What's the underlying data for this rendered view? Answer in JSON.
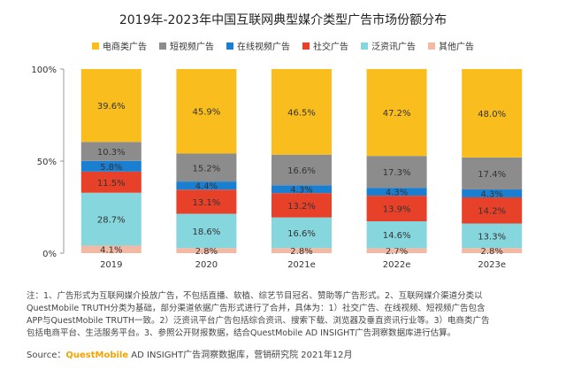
{
  "chart_data": {
    "type": "bar",
    "stacked": true,
    "title": "2019年-2023年中国互联网典型媒介类型广告市场份额分布",
    "categories": [
      "2019",
      "2020",
      "2021e",
      "2022e",
      "2023e"
    ],
    "ylim": [
      0,
      100
    ],
    "yticks": [
      "0%",
      "50%",
      "100%"
    ],
    "legend_position": "top",
    "series": [
      {
        "name": "其他广告",
        "color": "#f2b9a4",
        "values": [
          4.1,
          2.8,
          2.8,
          2.7,
          2.8
        ],
        "labels": [
          "4.1%",
          "2.8%",
          "2.8%",
          "2.7%",
          "2.8%"
        ]
      },
      {
        "name": "泛资讯广告",
        "color": "#86d6de",
        "values": [
          28.7,
          18.6,
          16.6,
          14.6,
          13.3
        ],
        "labels": [
          "28.7%",
          "18.6%",
          "16.6%",
          "14.6%",
          "13.3%"
        ]
      },
      {
        "name": "社交广告",
        "color": "#e8412a",
        "values": [
          11.5,
          13.1,
          13.2,
          13.9,
          14.2
        ],
        "labels": [
          "11.5%",
          "13.1%",
          "13.2%",
          "13.9%",
          "14.2%"
        ]
      },
      {
        "name": "在线视频广告",
        "color": "#1b7fd1",
        "values": [
          5.8,
          4.4,
          4.3,
          4.3,
          4.3
        ],
        "labels": [
          "5.8%",
          "4.4%",
          "4.3%",
          "4.3%",
          "4.3%"
        ]
      },
      {
        "name": "短视频广告",
        "color": "#8c8c8c",
        "values": [
          10.3,
          15.2,
          16.6,
          17.3,
          17.4
        ],
        "labels": [
          "10.3%",
          "15.2%",
          "16.6%",
          "17.3%",
          "17.4%"
        ]
      },
      {
        "name": "电商类广告",
        "color": "#f9bd1e",
        "values": [
          39.6,
          45.9,
          46.5,
          47.2,
          48.0
        ],
        "labels": [
          "39.6%",
          "45.9%",
          "46.5%",
          "47.2%",
          "48.0%"
        ]
      }
    ],
    "legend_order": [
      "电商类广告",
      "短视频广告",
      "在线视频广告",
      "社交广告",
      "泛资讯广告",
      "其他广告"
    ]
  },
  "notes": {
    "line1": "注：1、广告形式为互联网媒介投放广告，不包括直播、软植、综艺节目冠名、赞助等广告形式。2、互联网媒介渠道分类以",
    "line2": "QuestMobile TRUTH分类为基础，部分渠道依据广告形式进行了合并，具体为：1）社交广告、在线视频、短视频广告包含",
    "line3": "APP与QuestMobile TRUTH一致。2）泛资讯平台广告包括综合资讯、搜索下载、浏览器及垂直资讯行业等。3）电商类广告",
    "line4": "包括电商平台、生活服务平台。3、参照公开财报数据，结合QuestMobile AD INSIGHT广告洞察数据库进行估算。"
  },
  "source": {
    "label": "Source：",
    "brand": "QuestMobile",
    "text": " AD INSIGHT广告洞察数据库，营销研究院 2021年12月"
  }
}
